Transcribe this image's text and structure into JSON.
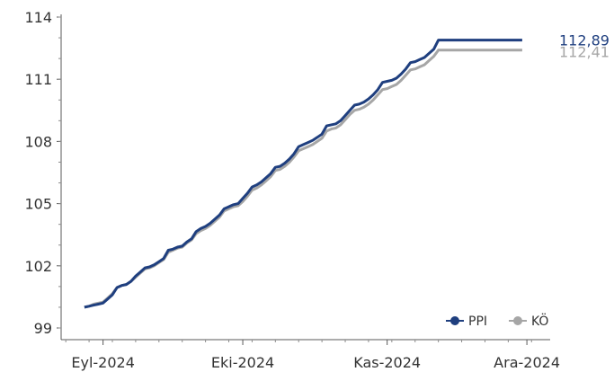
{
  "chart_data": {
    "type": "line",
    "title": "",
    "xlabel": "",
    "ylabel": "",
    "ylim": [
      99,
      114
    ],
    "y_ticks": [
      99,
      102,
      105,
      108,
      111,
      114
    ],
    "x_ticks": [
      {
        "day": 5,
        "label": "Eyl-2024"
      },
      {
        "day": 35,
        "label": "Eki-2024"
      },
      {
        "day": 66,
        "label": "Kas-2024"
      },
      {
        "day": 96,
        "label": "Ara-2024"
      }
    ],
    "x_range": [
      -4,
      101
    ],
    "grid": false,
    "legend": "bottom-right",
    "series": [
      {
        "name": "PPI",
        "color": "#1f3f7f",
        "end_label": "112,89",
        "x": [
          1,
          2,
          3,
          4,
          5,
          6,
          7,
          8,
          9,
          10,
          11,
          12,
          13,
          14,
          15,
          16,
          17,
          18,
          19,
          20,
          21,
          22,
          23,
          24,
          25,
          26,
          27,
          28,
          29,
          30,
          31,
          32,
          33,
          34,
          35,
          36,
          37,
          38,
          39,
          40,
          41,
          42,
          43,
          44,
          45,
          46,
          47,
          48,
          49,
          50,
          51,
          52,
          53,
          54,
          55,
          56,
          57,
          58,
          59,
          60,
          61,
          62,
          63,
          64,
          65,
          66,
          67,
          68,
          69,
          70,
          71,
          72,
          73,
          74,
          75,
          76,
          77,
          78,
          79,
          80,
          81,
          82,
          83,
          84,
          85,
          86,
          87,
          88,
          89,
          90,
          91,
          92,
          93,
          94,
          95
        ],
        "y": [
          100.0,
          100.05,
          100.1,
          100.15,
          100.2,
          100.4,
          100.6,
          100.95,
          101.05,
          101.1,
          101.25,
          101.5,
          101.7,
          101.9,
          101.95,
          102.05,
          102.2,
          102.35,
          102.75,
          102.8,
          102.9,
          102.95,
          103.15,
          103.3,
          103.65,
          103.8,
          103.9,
          104.05,
          104.25,
          104.45,
          104.75,
          104.85,
          104.95,
          105.0,
          105.25,
          105.5,
          105.8,
          105.9,
          106.05,
          106.25,
          106.45,
          106.75,
          106.8,
          106.95,
          107.15,
          107.4,
          107.75,
          107.85,
          107.95,
          108.05,
          108.2,
          108.35,
          108.75,
          108.8,
          108.85,
          109.0,
          109.25,
          109.5,
          109.75,
          109.8,
          109.9,
          110.05,
          110.25,
          110.5,
          110.85,
          110.9,
          110.95,
          111.05,
          111.25,
          111.5,
          111.8,
          111.85,
          111.95,
          112.05,
          112.25,
          112.45,
          112.89,
          112.89,
          112.89,
          112.89,
          112.89,
          112.89,
          112.89,
          112.89,
          112.89,
          112.89,
          112.89,
          112.89,
          112.89,
          112.89,
          112.89,
          112.89,
          112.89,
          112.89,
          112.89
        ]
      },
      {
        "name": "KÖ",
        "color": "#a6a6a6",
        "end_label": "112,41",
        "x": [
          1,
          2,
          3,
          4,
          5,
          6,
          7,
          8,
          9,
          10,
          11,
          12,
          13,
          14,
          15,
          16,
          17,
          18,
          19,
          20,
          21,
          22,
          23,
          24,
          25,
          26,
          27,
          28,
          29,
          30,
          31,
          32,
          33,
          34,
          35,
          36,
          37,
          38,
          39,
          40,
          41,
          42,
          43,
          44,
          45,
          46,
          47,
          48,
          49,
          50,
          51,
          52,
          53,
          54,
          55,
          56,
          57,
          58,
          59,
          60,
          61,
          62,
          63,
          64,
          65,
          66,
          67,
          68,
          69,
          70,
          71,
          72,
          73,
          74,
          75,
          76,
          77,
          78,
          79,
          80,
          81,
          82,
          83,
          84,
          85,
          86,
          87,
          88,
          89,
          90,
          91,
          92,
          93,
          94,
          95
        ],
        "y": [
          100.0,
          100.05,
          100.15,
          100.2,
          100.25,
          100.45,
          100.65,
          100.95,
          101.05,
          101.1,
          101.25,
          101.45,
          101.65,
          101.85,
          101.9,
          102.0,
          102.15,
          102.3,
          102.65,
          102.75,
          102.85,
          102.9,
          103.1,
          103.25,
          103.55,
          103.7,
          103.8,
          103.95,
          104.15,
          104.35,
          104.65,
          104.75,
          104.85,
          104.9,
          105.1,
          105.35,
          105.65,
          105.75,
          105.9,
          106.1,
          106.3,
          106.6,
          106.65,
          106.8,
          107.0,
          107.25,
          107.55,
          107.65,
          107.75,
          107.85,
          108.0,
          108.15,
          108.5,
          108.6,
          108.65,
          108.8,
          109.05,
          109.3,
          109.5,
          109.55,
          109.65,
          109.8,
          110.0,
          110.25,
          110.5,
          110.55,
          110.65,
          110.75,
          110.95,
          111.2,
          111.45,
          111.5,
          111.6,
          111.7,
          111.9,
          112.1,
          112.41,
          112.41,
          112.41,
          112.41,
          112.41,
          112.41,
          112.41,
          112.41,
          112.41,
          112.41,
          112.41,
          112.41,
          112.41,
          112.41,
          112.41,
          112.41,
          112.41,
          112.41,
          112.41
        ]
      }
    ]
  }
}
